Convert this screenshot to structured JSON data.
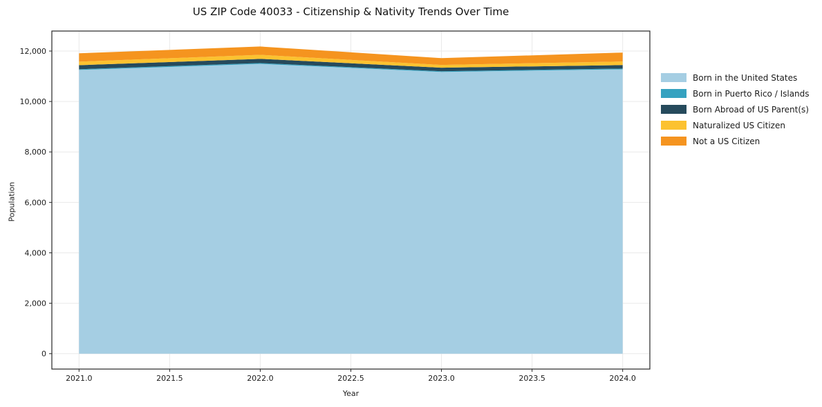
{
  "page": {
    "background": "#ffffff",
    "text_color": "#1a1a1a",
    "spine_color": "#262626",
    "grid_color": "#e9e9e9"
  },
  "chart_data": {
    "type": "area",
    "stacked": true,
    "title": "US ZIP Code 40033 - Citizenship & Nativity Trends Over Time",
    "xlabel": "Year",
    "ylabel": "Population",
    "grid": true,
    "legend_position": "right-outside",
    "x": [
      2021,
      2022,
      2023,
      2024
    ],
    "series": [
      {
        "name": "Born in the United States",
        "color": "#a5cee3",
        "values": [
          11250,
          11490,
          11170,
          11275
        ]
      },
      {
        "name": "Born in Puerto Rico / Islands",
        "color": "#35a2c0",
        "values": [
          30,
          35,
          30,
          30
        ]
      },
      {
        "name": "Born Abroad of US Parent(s)",
        "color": "#264a5c",
        "values": [
          160,
          165,
          140,
          140
        ]
      },
      {
        "name": "Naturalized US Citizen",
        "color": "#fcc230",
        "values": [
          140,
          160,
          110,
          140
        ]
      },
      {
        "name": "Not a US Citizen",
        "color": "#f5941f",
        "values": [
          330,
          330,
          270,
          355
        ]
      }
    ],
    "totals": [
      11910,
      12180,
      11720,
      11940
    ],
    "xlim": [
      2020.85,
      2024.15
    ],
    "ylim": [
      -609,
      12793
    ],
    "x_ticks": [
      {
        "value": 2021.0,
        "label": "2021.0"
      },
      {
        "value": 2021.5,
        "label": "2021.5"
      },
      {
        "value": 2022.0,
        "label": "2022.0"
      },
      {
        "value": 2022.5,
        "label": "2022.5"
      },
      {
        "value": 2023.0,
        "label": "2023.0"
      },
      {
        "value": 2023.5,
        "label": "2023.5"
      },
      {
        "value": 2024.0,
        "label": "2024.0"
      }
    ],
    "y_ticks": [
      {
        "value": 0,
        "label": "0"
      },
      {
        "value": 2000,
        "label": "2,000"
      },
      {
        "value": 4000,
        "label": "4,000"
      },
      {
        "value": 6000,
        "label": "6,000"
      },
      {
        "value": 8000,
        "label": "8,000"
      },
      {
        "value": 10000,
        "label": "10,000"
      },
      {
        "value": 12000,
        "label": "12,000"
      }
    ]
  }
}
